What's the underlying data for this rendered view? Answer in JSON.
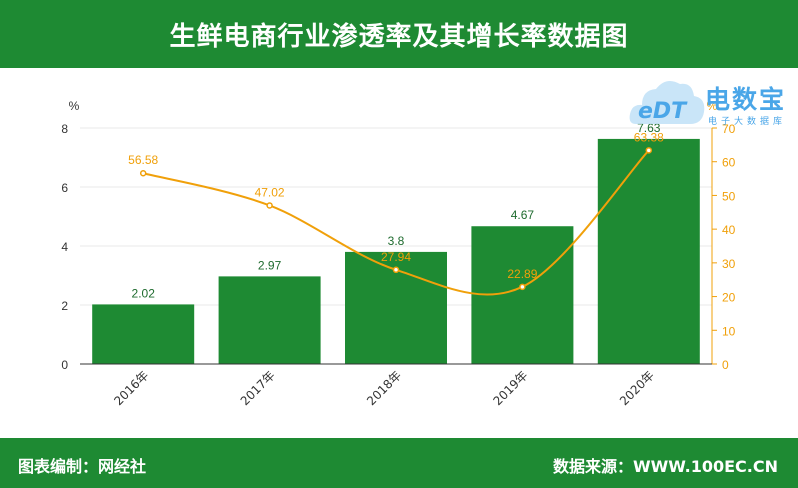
{
  "header": {
    "title": "生鲜电商行业渗透率及其增长率数据图"
  },
  "footer": {
    "left": "图表编制：网经社",
    "right": "数据来源：WWW.100EC.CN"
  },
  "logo": {
    "main": "电数宝",
    "sub": "电子大数据库",
    "mark": "eDT"
  },
  "colors": {
    "bar": "#1e8a33",
    "line": "#f0a00a",
    "header": "#1e8a33",
    "logo": "#4aa6e8"
  },
  "chart_data": {
    "type": "bar",
    "categories": [
      "2016年",
      "2017年",
      "2018年",
      "2019年",
      "2020年"
    ],
    "series": [
      {
        "type": "bar",
        "axis": "left",
        "values": [
          2.02,
          2.97,
          3.8,
          4.67,
          7.63
        ]
      },
      {
        "type": "line",
        "axis": "right",
        "values": [
          56.58,
          47.02,
          27.94,
          22.89,
          63.38
        ]
      }
    ],
    "ylabel": "%",
    "y2label": "%",
    "ylim": [
      0,
      8
    ],
    "y2lim": [
      0,
      70
    ],
    "yticks": [
      0,
      2,
      4,
      6,
      8
    ],
    "y2ticks": [
      0,
      10,
      20,
      30,
      40,
      50,
      60,
      70
    ],
    "grid": true,
    "legend": "none"
  }
}
